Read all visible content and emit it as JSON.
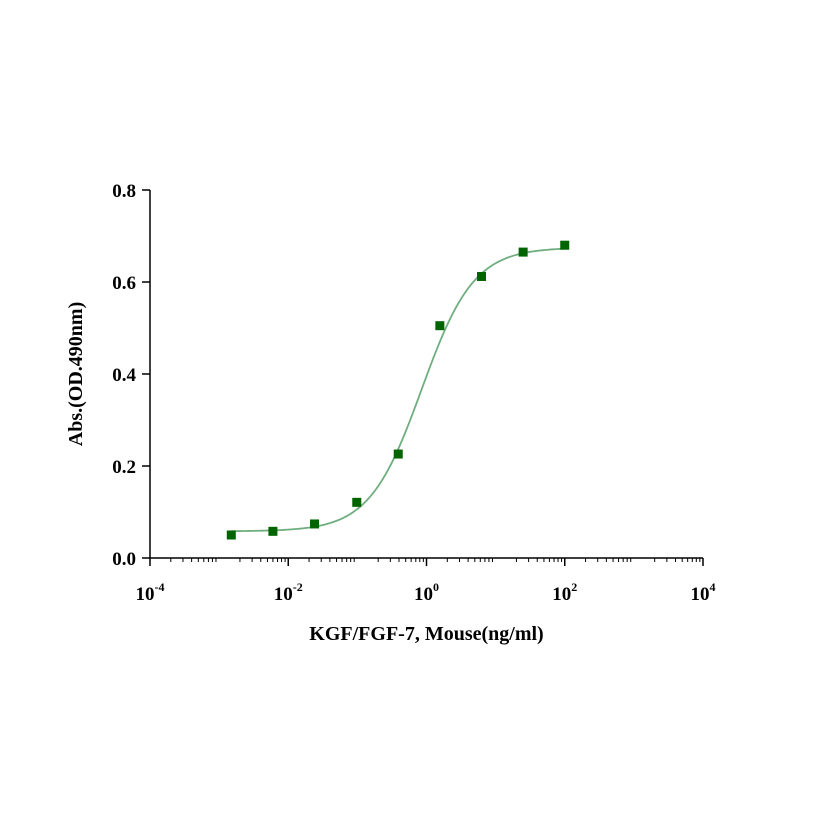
{
  "chart_data": {
    "type": "scatter",
    "title": "",
    "xlabel": "KGF/FGF-7, Mouse(ng/ml)",
    "ylabel": "Abs.(OD.490nm)",
    "x_scale": "log10",
    "xlim": [
      0.0001,
      10000
    ],
    "ylim": [
      0,
      0.8
    ],
    "x_ticks": [
      {
        "base": "10",
        "exp": "-4"
      },
      {
        "base": "10",
        "exp": "-2"
      },
      {
        "base": "10",
        "exp": "0"
      },
      {
        "base": "10",
        "exp": "2"
      },
      {
        "base": "10",
        "exp": "4"
      }
    ],
    "y_ticks": [
      "0.0",
      "0.2",
      "0.4",
      "0.6",
      "0.8"
    ],
    "series": [
      {
        "name": "KGF/FGF-7, Mouse",
        "color": "#006400",
        "x": [
          0.0015,
          0.006,
          0.024,
          0.098,
          0.39,
          1.56,
          6.25,
          25,
          100
        ],
        "y": [
          0.05,
          0.058,
          0.074,
          0.121,
          0.226,
          0.505,
          0.612,
          0.665,
          0.68
        ]
      }
    ],
    "fit": {
      "type": "4PL",
      "color": "#6fae7f",
      "bottom": 0.058,
      "top": 0.675,
      "ec50": 0.85,
      "hill": 1.15,
      "x_range": [
        0.0015,
        100
      ]
    }
  }
}
